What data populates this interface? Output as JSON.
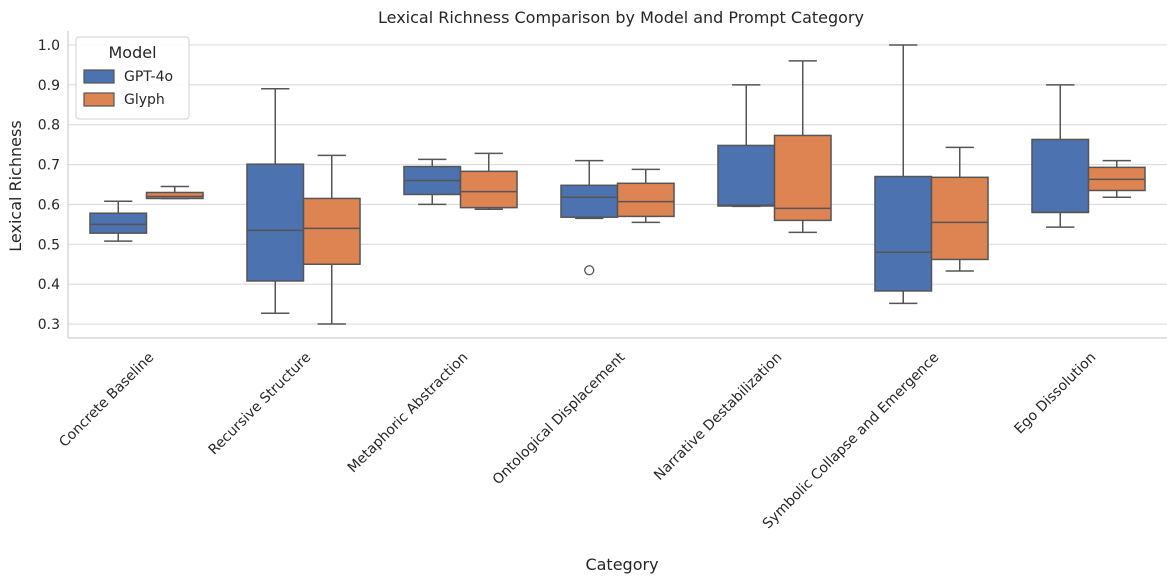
{
  "chart_data": {
    "type": "box",
    "title": "Lexical Richness Comparison by Model and Prompt Category",
    "xlabel": "Category",
    "ylabel": "Lexical Richness",
    "ylim": [
      0.265,
      1.035
    ],
    "yticks": [
      "0.3",
      "0.4",
      "0.5",
      "0.6",
      "0.7",
      "0.8",
      "0.9",
      "1.0"
    ],
    "grid": "horizontal",
    "legend": {
      "title": "Model",
      "placement": "top-left"
    },
    "categories": [
      "Concrete Baseline",
      "Recursive Structure",
      "Metaphoric Abstraction",
      "Ontological Displacement",
      "Narrative Destabilization",
      "Symbolic Collapse and Emergence",
      "Ego Dissolution"
    ],
    "series": [
      {
        "name": "GPT-4o",
        "color": "#4c72b0",
        "boxes": [
          {
            "whislo": 0.508,
            "q1": 0.528,
            "med": 0.55,
            "q3": 0.578,
            "whishi": 0.608,
            "fliers": []
          },
          {
            "whislo": 0.327,
            "q1": 0.408,
            "med": 0.535,
            "q3": 0.701,
            "whishi": 0.89,
            "fliers": []
          },
          {
            "whislo": 0.6,
            "q1": 0.625,
            "med": 0.66,
            "q3": 0.695,
            "whishi": 0.713,
            "fliers": []
          },
          {
            "whislo": 0.565,
            "q1": 0.568,
            "med": 0.618,
            "q3": 0.648,
            "whishi": 0.71,
            "fliers": [
              0.435
            ]
          },
          {
            "whislo": 0.595,
            "q1": 0.596,
            "med": 0.598,
            "q3": 0.748,
            "whishi": 0.9,
            "fliers": []
          },
          {
            "whislo": 0.352,
            "q1": 0.383,
            "med": 0.48,
            "q3": 0.67,
            "whishi": 1.0,
            "fliers": []
          },
          {
            "whislo": 0.543,
            "q1": 0.58,
            "med": 0.58,
            "q3": 0.763,
            "whishi": 0.9,
            "fliers": []
          }
        ]
      },
      {
        "name": "Glyph",
        "color": "#dd8452",
        "boxes": [
          {
            "whislo": 0.615,
            "q1": 0.615,
            "med": 0.62,
            "q3": 0.63,
            "whishi": 0.645,
            "fliers": []
          },
          {
            "whislo": 0.3,
            "q1": 0.45,
            "med": 0.54,
            "q3": 0.615,
            "whishi": 0.723,
            "fliers": []
          },
          {
            "whislo": 0.588,
            "q1": 0.592,
            "med": 0.632,
            "q3": 0.683,
            "whishi": 0.728,
            "fliers": []
          },
          {
            "whislo": 0.555,
            "q1": 0.57,
            "med": 0.607,
            "q3": 0.653,
            "whishi": 0.688,
            "fliers": []
          },
          {
            "whislo": 0.53,
            "q1": 0.56,
            "med": 0.59,
            "q3": 0.773,
            "whishi": 0.96,
            "fliers": []
          },
          {
            "whislo": 0.433,
            "q1": 0.462,
            "med": 0.555,
            "q3": 0.668,
            "whishi": 0.743,
            "fliers": []
          },
          {
            "whislo": 0.618,
            "q1": 0.635,
            "med": 0.663,
            "q3": 0.693,
            "whishi": 0.71,
            "fliers": []
          }
        ]
      }
    ]
  }
}
